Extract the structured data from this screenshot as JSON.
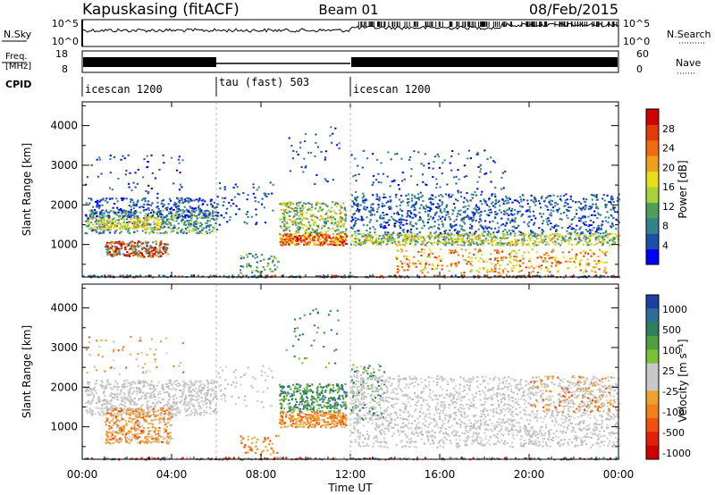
{
  "header": {
    "site_title": "Kapuskasing (fitACF)",
    "beam": "Beam 01",
    "date": "08/Feb/2015"
  },
  "nsky_panel": {
    "left_label": "N.Sky",
    "left_ticks": [
      "10^5",
      "10^0"
    ],
    "right_label": "N.Search",
    "right_ticks": [
      "10^5",
      "10^0"
    ]
  },
  "freq_panel": {
    "left_label_line1": "Freq.",
    "left_label_line2": "[MHz]",
    "left_ticks": [
      "18",
      "8"
    ],
    "right_label": "Nave",
    "right_ticks": [
      "60",
      "0"
    ]
  },
  "cpid": {
    "label": "CPID",
    "segments": [
      {
        "name": "icescan 1200",
        "start_hour": 0,
        "end_hour": 6
      },
      {
        "name": "tau (fast) 503",
        "start_hour": 6,
        "end_hour": 12
      },
      {
        "name": "icescan 1200",
        "start_hour": 12,
        "end_hour": 24
      }
    ]
  },
  "chart_data": [
    {
      "type": "heatmap",
      "name": "power",
      "ylabel": "Slant Range [km]",
      "yticks": [
        "1000",
        "2000",
        "3000",
        "4000"
      ],
      "ylim": [
        180,
        4600
      ],
      "colorbar": {
        "label": "Power [dB]",
        "ticks": [
          "4",
          "8",
          "12",
          "16",
          "20",
          "24",
          "28"
        ],
        "colors": [
          "#0000ff",
          "#1a50a8",
          "#33838a",
          "#4f9e5c",
          "#a7d43c",
          "#e8df18",
          "#f0a020",
          "#ef6a10",
          "#e23a0a",
          "#d00000"
        ]
      }
    },
    {
      "type": "heatmap",
      "name": "velocity",
      "ylabel": "Slant Range [km]",
      "yticks": [
        "1000",
        "2000",
        "3000",
        "4000"
      ],
      "ylim": [
        180,
        4600
      ],
      "colorbar": {
        "label": "Velocity [m s⁻¹]",
        "ticks": [
          "1000",
          "500",
          "100",
          "25",
          "-25",
          "-100",
          "-500",
          "-1000"
        ],
        "colors": [
          "#1f3fa0",
          "#2e6f9a",
          "#2f7f5a",
          "#4fa040",
          "#7ac038",
          "#c8c8c8",
          "#c8c8c8",
          "#f0a030",
          "#f08018",
          "#f05010",
          "#e02008",
          "#d00000"
        ]
      }
    }
  ],
  "time_axis": {
    "label": "Time UT",
    "ticks": [
      "00:00",
      "04:00",
      "08:00",
      "12:00",
      "16:00",
      "20:00",
      "00:00"
    ],
    "range_hours": [
      0,
      24
    ]
  }
}
